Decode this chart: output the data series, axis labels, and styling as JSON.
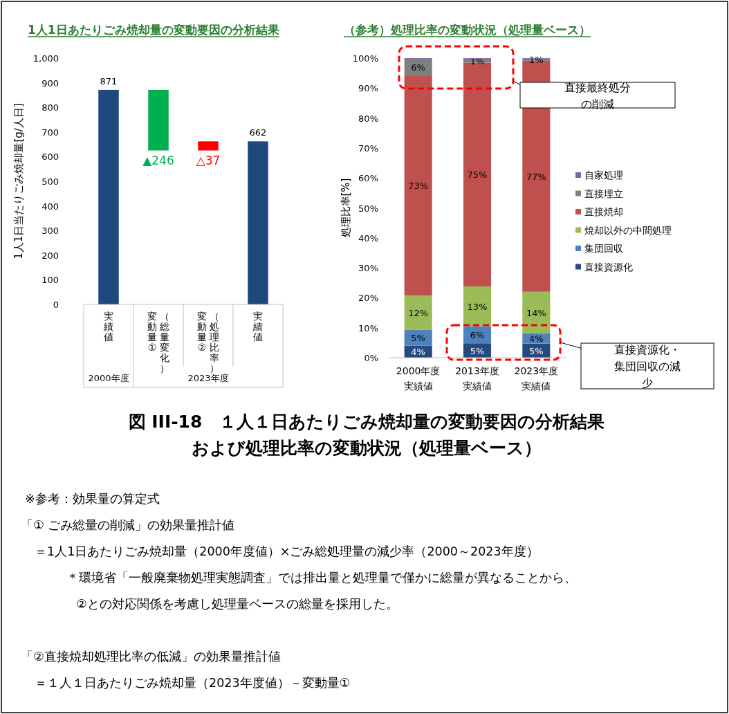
{
  "chart_data": [
    {
      "type": "bar",
      "title": "1人1日あたりごみ焼却量の変動要因の分析結果",
      "ylabel": "1人1日当たりごみ焼却量[g/人日]",
      "categories": [
        "実績値",
        "変動量①（総量変化）",
        "変動量②（処理比率）",
        "実績値"
      ],
      "values": [
        871,
        -246,
        -37,
        662
      ],
      "base": [
        0,
        871,
        662,
        0
      ],
      "colors": [
        "#1f497d",
        "#00b050",
        "#ff0000",
        "#1f497d"
      ],
      "value_labels": [
        "871",
        "▲246",
        "△37",
        "662"
      ],
      "ylim": [
        0,
        1000
      ],
      "yticks": [
        0,
        100,
        200,
        300,
        400,
        500,
        600,
        700,
        800,
        900,
        {
          "value": 1000,
          "label": "1,000"
        }
      ],
      "annotations": [
        "2000年度",
        "2023年度"
      ]
    },
    {
      "type": "bar",
      "title": "（参考）処理比率の変動状況（処理量ベース）",
      "ylabel": "処理比率[%]",
      "categories": [
        "2000年度実績値",
        "2013年度実績値",
        "2023年度実績値"
      ],
      "stacked": true,
      "legend": "right",
      "series": [
        {
          "name": "直接資源化",
          "color": "#254a7d",
          "values": [
            4,
            4.8,
            4.7
          ],
          "value_labels": [
            "4%",
            "5%",
            "5%"
          ]
        },
        {
          "name": "集団回収",
          "color": "#4f81bd",
          "values": [
            5.3,
            5.7,
            3.5
          ],
          "value_labels": [
            "5%",
            "6%",
            "4%"
          ]
        },
        {
          "name": "焼却以外の中間処理",
          "color": "#9bbb59",
          "values": [
            11.5,
            13.3,
            13.8
          ],
          "value_labels": [
            "12%",
            "13%",
            "14%"
          ]
        },
        {
          "name": "直接焼却",
          "color": "#c0504d",
          "values": [
            73.2,
            74.7,
            77.1
          ],
          "value_labels": [
            "73%",
            "75%",
            "77%"
          ]
        },
        {
          "name": "直接埋立",
          "color": "#7f7f7f",
          "values": [
            5.8,
            1.3,
            0.7
          ],
          "value_labels": [
            "6%",
            "1%",
            "1%"
          ]
        },
        {
          "name": "自家処理",
          "color": "#8064a2",
          "values": [
            0.2,
            0.2,
            0.2
          ]
        }
      ],
      "ylim": [
        0,
        100
      ],
      "yticks": [
        {
          "value": 0,
          "label": "0%"
        },
        {
          "value": 10,
          "label": "10%"
        },
        {
          "value": 20,
          "label": "20%"
        },
        {
          "value": 30,
          "label": "30%"
        },
        {
          "value": 40,
          "label": "40%"
        },
        {
          "value": 50,
          "label": "50%"
        },
        {
          "value": 60,
          "label": "60%"
        },
        {
          "value": 70,
          "label": "70%"
        },
        {
          "value": 80,
          "label": "80%"
        },
        {
          "value": 90,
          "label": "90%"
        },
        {
          "value": 100,
          "label": "100%"
        }
      ],
      "annotations": [
        "直接最終処分の削減",
        "直接資源化・集団回収の減少"
      ]
    },
    {
      "type": "other",
      "annotations": [
        "図 III-18　１人１日あたりごみ焼却量の変動要因の分析結果",
        "および処理比率の変動状況（処理量ベース）",
        "※参考：効果量の算定式",
        "「① ごみ総量の削減」の効果量推計値",
        "＝1人1日あたりごみ焼却量（2000年度値）×ごみ総処理量の減少率（2000～2023年度）",
        "＊環境省「一般廃棄物処理実態調査」では排出量と処理量で僅かに総量が異なることから、",
        "②との対応関係を考慮し処理量ベースの総量を採用した。",
        "「②直接焼却処理比率の低減」の効果量推計値",
        "＝１人１日あたりごみ焼却量（2023年度値）－変動量①"
      ]
    }
  ]
}
